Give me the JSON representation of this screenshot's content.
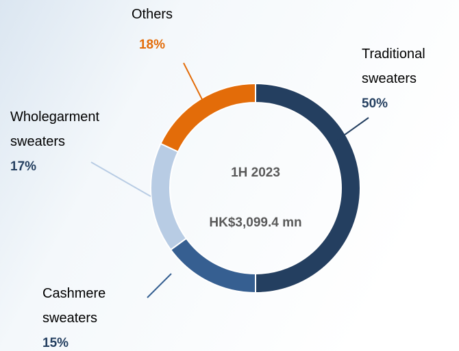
{
  "chart_data": {
    "type": "donut",
    "categories": [
      "Traditional sweaters",
      "Cashmere sweaters",
      "Wholegarment sweaters",
      "Others"
    ],
    "values": [
      50,
      15,
      17,
      18
    ],
    "value_labels": [
      "50%",
      "15%",
      "17%",
      "18%"
    ],
    "colors": [
      "#243f60",
      "#365f91",
      "#b8cce4",
      "#e36c09"
    ],
    "label_colors": [
      "#243f60",
      "#243f60",
      "#243f60",
      "#e36c09"
    ],
    "annotations": [
      "1H 2023",
      "HK$3,099.4 mn"
    ]
  }
}
